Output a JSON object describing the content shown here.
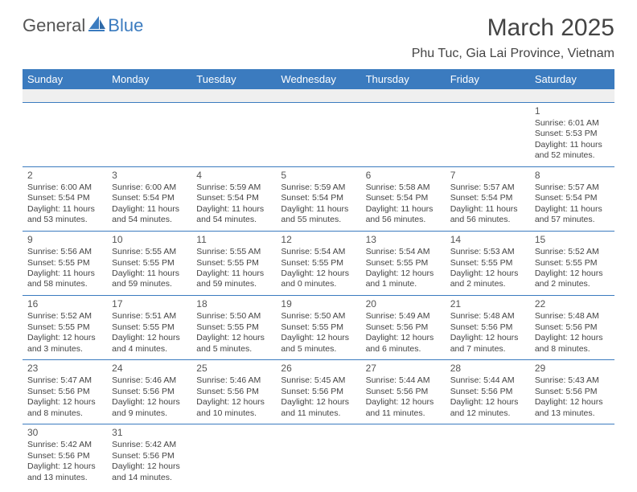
{
  "logo": {
    "word1": "General",
    "word2": "Blue",
    "color1": "#555555",
    "color2": "#3b7bbf"
  },
  "title": "March 2025",
  "location": "Phu Tuc, Gia Lai Province, Vietnam",
  "colors": {
    "header_bg": "#3b7bbf",
    "header_fg": "#ffffff",
    "cell_border": "#3b7bbf",
    "blank_bg": "#efefef",
    "text": "#444444"
  },
  "typography": {
    "title_fontsize": 30,
    "location_fontsize": 16,
    "dayheader_fontsize": 13,
    "cell_fontsize": 10.5
  },
  "layout": {
    "columns": 7,
    "rows": 6,
    "leading_empty": 6,
    "trailing_empty": 5
  },
  "weekdays": [
    "Sunday",
    "Monday",
    "Tuesday",
    "Wednesday",
    "Thursday",
    "Friday",
    "Saturday"
  ],
  "labels": {
    "sunrise": "Sunrise:",
    "sunset": "Sunset:",
    "daylight": "Daylight:"
  },
  "days": [
    {
      "n": 1,
      "sunrise": "6:01 AM",
      "sunset": "5:53 PM",
      "daylight": "11 hours and 52 minutes."
    },
    {
      "n": 2,
      "sunrise": "6:00 AM",
      "sunset": "5:54 PM",
      "daylight": "11 hours and 53 minutes."
    },
    {
      "n": 3,
      "sunrise": "6:00 AM",
      "sunset": "5:54 PM",
      "daylight": "11 hours and 54 minutes."
    },
    {
      "n": 4,
      "sunrise": "5:59 AM",
      "sunset": "5:54 PM",
      "daylight": "11 hours and 54 minutes."
    },
    {
      "n": 5,
      "sunrise": "5:59 AM",
      "sunset": "5:54 PM",
      "daylight": "11 hours and 55 minutes."
    },
    {
      "n": 6,
      "sunrise": "5:58 AM",
      "sunset": "5:54 PM",
      "daylight": "11 hours and 56 minutes."
    },
    {
      "n": 7,
      "sunrise": "5:57 AM",
      "sunset": "5:54 PM",
      "daylight": "11 hours and 56 minutes."
    },
    {
      "n": 8,
      "sunrise": "5:57 AM",
      "sunset": "5:54 PM",
      "daylight": "11 hours and 57 minutes."
    },
    {
      "n": 9,
      "sunrise": "5:56 AM",
      "sunset": "5:55 PM",
      "daylight": "11 hours and 58 minutes."
    },
    {
      "n": 10,
      "sunrise": "5:55 AM",
      "sunset": "5:55 PM",
      "daylight": "11 hours and 59 minutes."
    },
    {
      "n": 11,
      "sunrise": "5:55 AM",
      "sunset": "5:55 PM",
      "daylight": "11 hours and 59 minutes."
    },
    {
      "n": 12,
      "sunrise": "5:54 AM",
      "sunset": "5:55 PM",
      "daylight": "12 hours and 0 minutes."
    },
    {
      "n": 13,
      "sunrise": "5:54 AM",
      "sunset": "5:55 PM",
      "daylight": "12 hours and 1 minute."
    },
    {
      "n": 14,
      "sunrise": "5:53 AM",
      "sunset": "5:55 PM",
      "daylight": "12 hours and 2 minutes."
    },
    {
      "n": 15,
      "sunrise": "5:52 AM",
      "sunset": "5:55 PM",
      "daylight": "12 hours and 2 minutes."
    },
    {
      "n": 16,
      "sunrise": "5:52 AM",
      "sunset": "5:55 PM",
      "daylight": "12 hours and 3 minutes."
    },
    {
      "n": 17,
      "sunrise": "5:51 AM",
      "sunset": "5:55 PM",
      "daylight": "12 hours and 4 minutes."
    },
    {
      "n": 18,
      "sunrise": "5:50 AM",
      "sunset": "5:55 PM",
      "daylight": "12 hours and 5 minutes."
    },
    {
      "n": 19,
      "sunrise": "5:50 AM",
      "sunset": "5:55 PM",
      "daylight": "12 hours and 5 minutes."
    },
    {
      "n": 20,
      "sunrise": "5:49 AM",
      "sunset": "5:56 PM",
      "daylight": "12 hours and 6 minutes."
    },
    {
      "n": 21,
      "sunrise": "5:48 AM",
      "sunset": "5:56 PM",
      "daylight": "12 hours and 7 minutes."
    },
    {
      "n": 22,
      "sunrise": "5:48 AM",
      "sunset": "5:56 PM",
      "daylight": "12 hours and 8 minutes."
    },
    {
      "n": 23,
      "sunrise": "5:47 AM",
      "sunset": "5:56 PM",
      "daylight": "12 hours and 8 minutes."
    },
    {
      "n": 24,
      "sunrise": "5:46 AM",
      "sunset": "5:56 PM",
      "daylight": "12 hours and 9 minutes."
    },
    {
      "n": 25,
      "sunrise": "5:46 AM",
      "sunset": "5:56 PM",
      "daylight": "12 hours and 10 minutes."
    },
    {
      "n": 26,
      "sunrise": "5:45 AM",
      "sunset": "5:56 PM",
      "daylight": "12 hours and 11 minutes."
    },
    {
      "n": 27,
      "sunrise": "5:44 AM",
      "sunset": "5:56 PM",
      "daylight": "12 hours and 11 minutes."
    },
    {
      "n": 28,
      "sunrise": "5:44 AM",
      "sunset": "5:56 PM",
      "daylight": "12 hours and 12 minutes."
    },
    {
      "n": 29,
      "sunrise": "5:43 AM",
      "sunset": "5:56 PM",
      "daylight": "12 hours and 13 minutes."
    },
    {
      "n": 30,
      "sunrise": "5:42 AM",
      "sunset": "5:56 PM",
      "daylight": "12 hours and 13 minutes."
    },
    {
      "n": 31,
      "sunrise": "5:42 AM",
      "sunset": "5:56 PM",
      "daylight": "12 hours and 14 minutes."
    }
  ]
}
